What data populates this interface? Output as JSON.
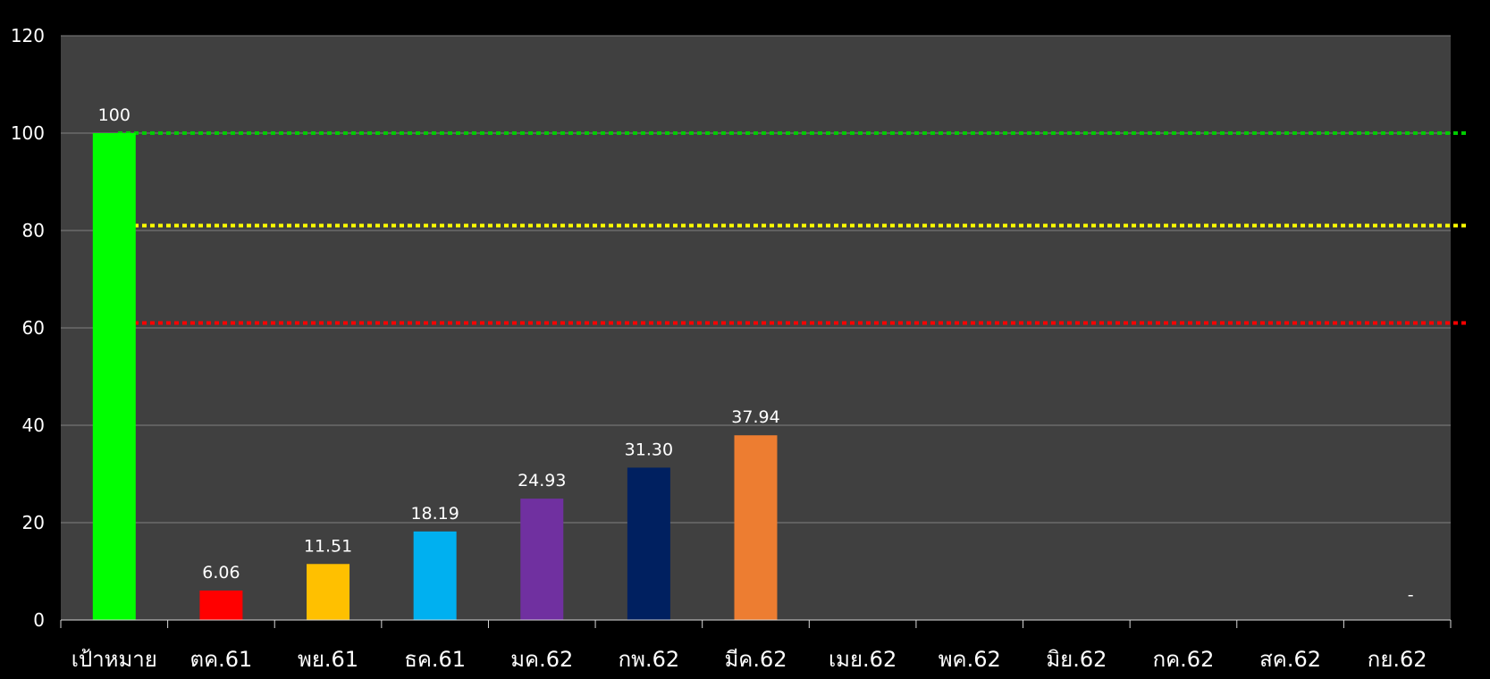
{
  "chart_data": {
    "type": "bar",
    "categories": [
      "เป้าหมาย",
      "ตค.61",
      "พย.61",
      "ธค.61",
      "มค.62",
      "กพ.62",
      "มีค.62",
      "เมย.62",
      "พค.62",
      "มิย.62",
      "กค.62",
      "สค.62",
      "กย.62"
    ],
    "values": [
      100,
      6.06,
      11.51,
      18.19,
      24.93,
      31.3,
      37.94,
      null,
      null,
      null,
      null,
      null,
      null
    ],
    "data_labels": [
      "100",
      "6.06",
      "11.51",
      "18.19",
      "24.93",
      "31.30",
      "37.94",
      "",
      "",
      "",
      "",
      "",
      "-"
    ],
    "bar_colors": [
      "#00ff00",
      "#ff0000",
      "#ffc000",
      "#00b0f0",
      "#7030a0",
      "#002060",
      "#ed7d31",
      "",
      "",
      "",
      "",
      "",
      ""
    ],
    "y_ticks": [
      "0",
      "20",
      "40",
      "60",
      "80",
      "100",
      "120"
    ],
    "ylim": [
      0,
      120
    ],
    "grid": true,
    "reference_lines": [
      {
        "value": 100,
        "color": "#00cc00"
      },
      {
        "value": 81,
        "color": "#ffff00"
      },
      {
        "value": 61,
        "color": "#ff0000"
      }
    ],
    "colors": {
      "background": "#000000",
      "plot_area": "#404040",
      "gridline": "#7f7f7f",
      "text": "#ffffff"
    }
  }
}
